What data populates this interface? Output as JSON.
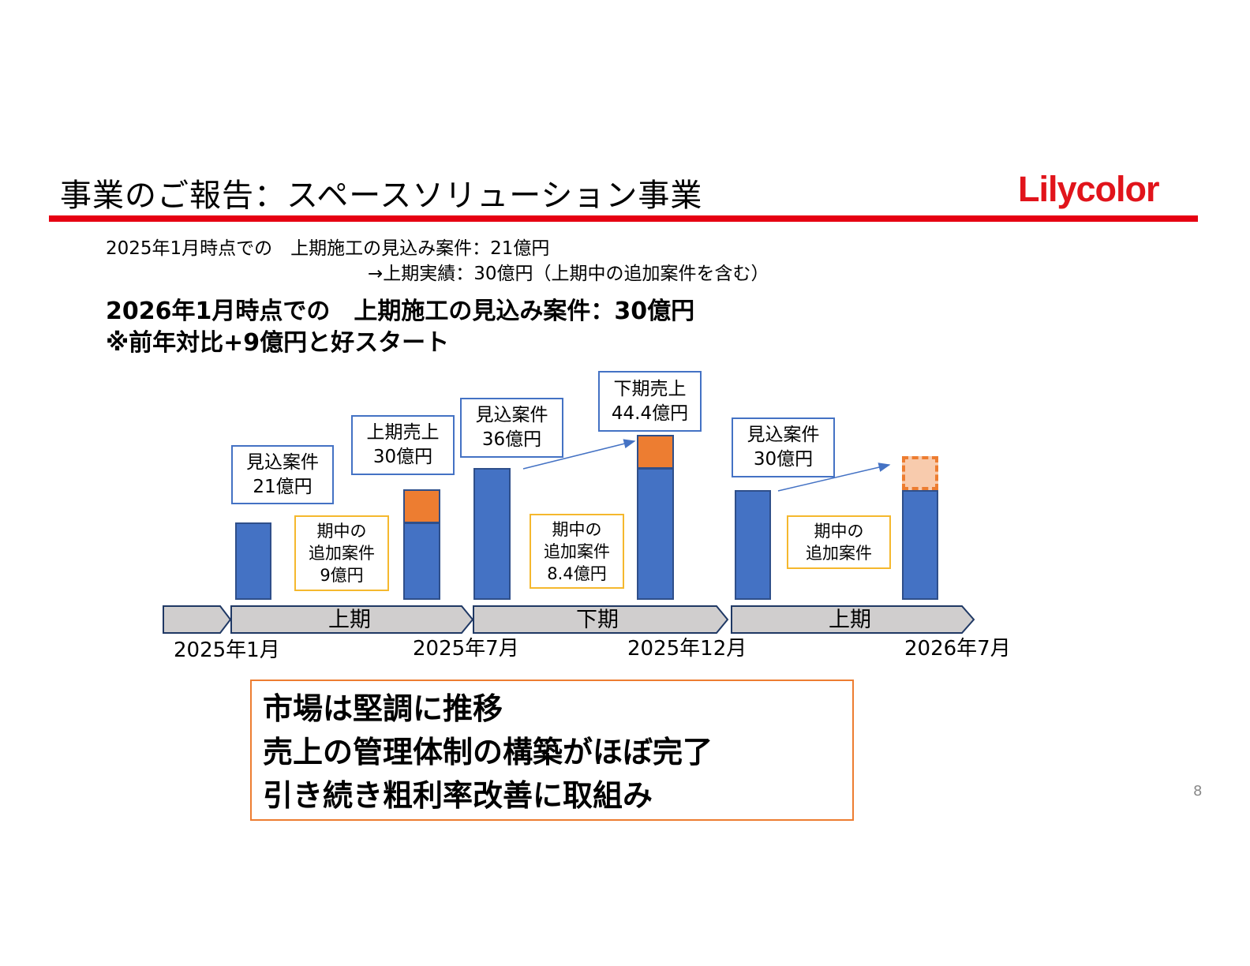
{
  "slide": {
    "title": "事業のご報告：スペースソリューション事業",
    "logo": "Lilycolor",
    "page_number": "8"
  },
  "intro": {
    "line1": "2025年1月時点での　上期施工の見込み案件：21億円",
    "line2": "→上期実績：30億円（上期中の追加案件を含む）",
    "bold_line1": "2026年1月時点での　上期施工の見込み案件：30億円",
    "bold_line2": "※前年対比+9億円と好スタート"
  },
  "timeline": {
    "periods": [
      {
        "label": "上期"
      },
      {
        "label": "下期"
      },
      {
        "label": "上期"
      }
    ],
    "dates": [
      "2025年1月",
      "2025年7月",
      "2025年12月",
      "2026年7月"
    ]
  },
  "callouts": {
    "outlook_21": {
      "line1": "見込案件",
      "line2": "21億円"
    },
    "sales_h1_30": {
      "line1": "上期売上",
      "line2": "30億円"
    },
    "outlook_36": {
      "line1": "見込案件",
      "line2": "36億円"
    },
    "sales_h2_444": {
      "line1": "下期売上",
      "line2": "44.4億円"
    },
    "outlook_30": {
      "line1": "見込案件",
      "line2": "30億円"
    },
    "added_9": {
      "line1": "期中の",
      "line2": "追加案件",
      "line3": "9億円"
    },
    "added_84": {
      "line1": "期中の",
      "line2": "追加案件",
      "line3": "8.4億円"
    },
    "added_next": {
      "line1": "期中の",
      "line2": "追加案件"
    }
  },
  "summary": {
    "line1": "市場は堅調に推移",
    "line2": "売上の管理体制の構築がほぼ完了",
    "line3": "引き続き粗利率改善に取組み"
  },
  "colors": {
    "accent_red": "#e60012",
    "bar_blue": "#4472c4",
    "bar_orange": "#ed7d31",
    "bar_orange_light": "#f8cbad",
    "callout_yellow": "#f5b82e"
  }
}
